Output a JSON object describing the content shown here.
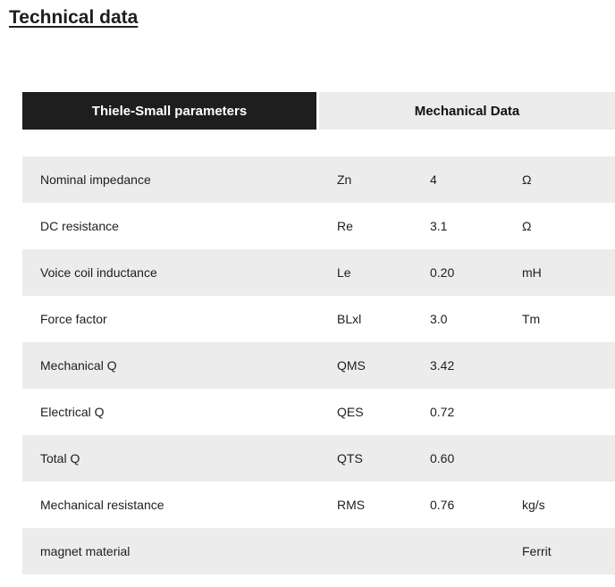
{
  "title": "Technical data",
  "tabs": [
    {
      "label": "Thiele-Small parameters",
      "active": true
    },
    {
      "label": "Mechanical Data",
      "active": false
    }
  ],
  "rows": [
    {
      "name": "Nominal impedance",
      "symbol": "Zn",
      "value": "4",
      "unit": "Ω"
    },
    {
      "name": "DC resistance",
      "symbol": "Re",
      "value": "3.1",
      "unit": "Ω"
    },
    {
      "name": "Voice coil inductance",
      "symbol": "Le",
      "value": "0.20",
      "unit": "mH"
    },
    {
      "name": "Force factor",
      "symbol": "BLxl",
      "value": "3.0",
      "unit": "Tm"
    },
    {
      "name": "Mechanical Q",
      "symbol": "QMS",
      "value": "3.42",
      "unit": ""
    },
    {
      "name": "Electrical Q",
      "symbol": "QES",
      "value": "0.72",
      "unit": ""
    },
    {
      "name": "Total Q",
      "symbol": "QTS",
      "value": "0.60",
      "unit": ""
    },
    {
      "name": "Mechanical resistance",
      "symbol": "RMS",
      "value": "0.76",
      "unit": "kg/s"
    },
    {
      "name": "magnet material",
      "symbol": "",
      "value": "",
      "unit": "Ferrit"
    }
  ]
}
